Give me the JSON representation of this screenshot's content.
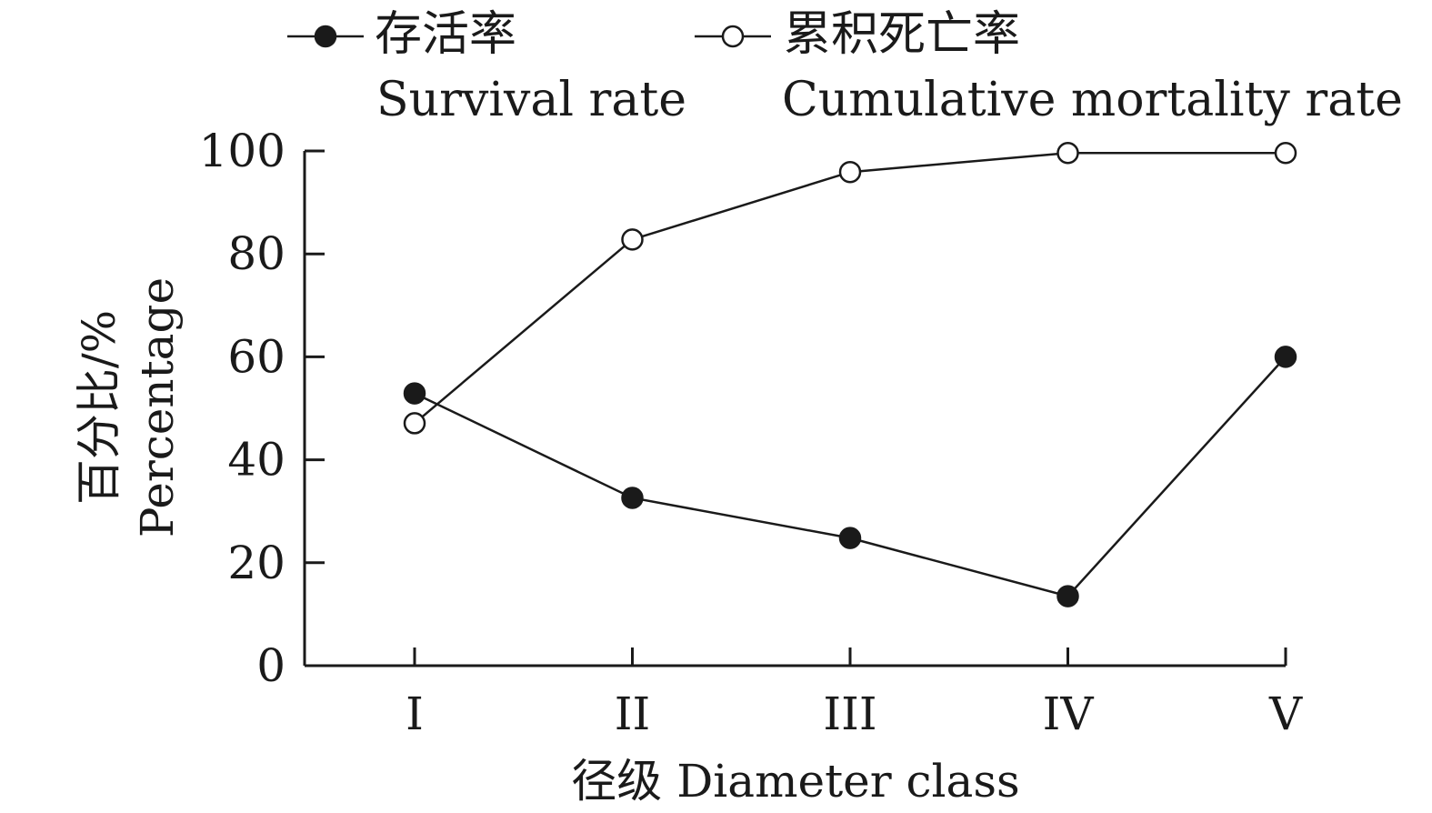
{
  "chart_data": {
    "type": "line",
    "categories": [
      "I",
      "II",
      "III",
      "IV",
      "V"
    ],
    "series": [
      {
        "name_cn": "存活率",
        "name_en": "Survival rate",
        "marker": "filled-circle",
        "values": [
          52.9,
          32.6,
          24.8,
          13.5,
          60.0
        ]
      },
      {
        "name_cn": "累积死亡率",
        "name_en": "Cumulative mortality rate",
        "marker": "open-circle",
        "values": [
          47.1,
          82.8,
          95.9,
          99.6,
          99.6
        ]
      }
    ],
    "xlabel": "径级 Diameter class",
    "ylabel_cn": "百分比/%",
    "ylabel_en": "Percentage",
    "ylim": [
      0,
      100
    ],
    "yticks": [
      0,
      20,
      40,
      60,
      80,
      100
    ],
    "legend_position": "top",
    "grid": false,
    "colors": {
      "line": "#1a1a1a",
      "marker_fill": "#1a1a1a",
      "open_fill": "#ffffff"
    }
  }
}
